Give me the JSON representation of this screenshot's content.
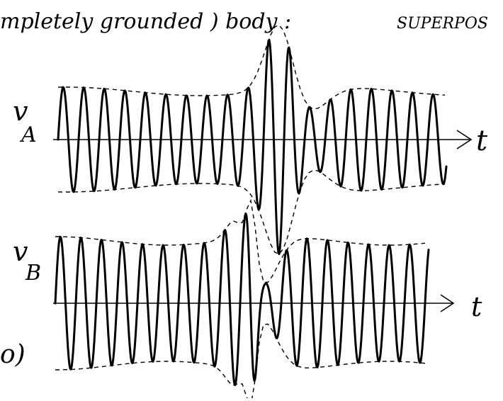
{
  "header": {
    "note": "mpletely grounded ) body :",
    "caps": "SUPERPOS"
  },
  "plots": [
    {
      "symbol": "v",
      "subscript": "A",
      "axis": "t"
    },
    {
      "symbol": "v",
      "subscript": "B",
      "axis": "t"
    }
  ],
  "part_label": "o)"
}
